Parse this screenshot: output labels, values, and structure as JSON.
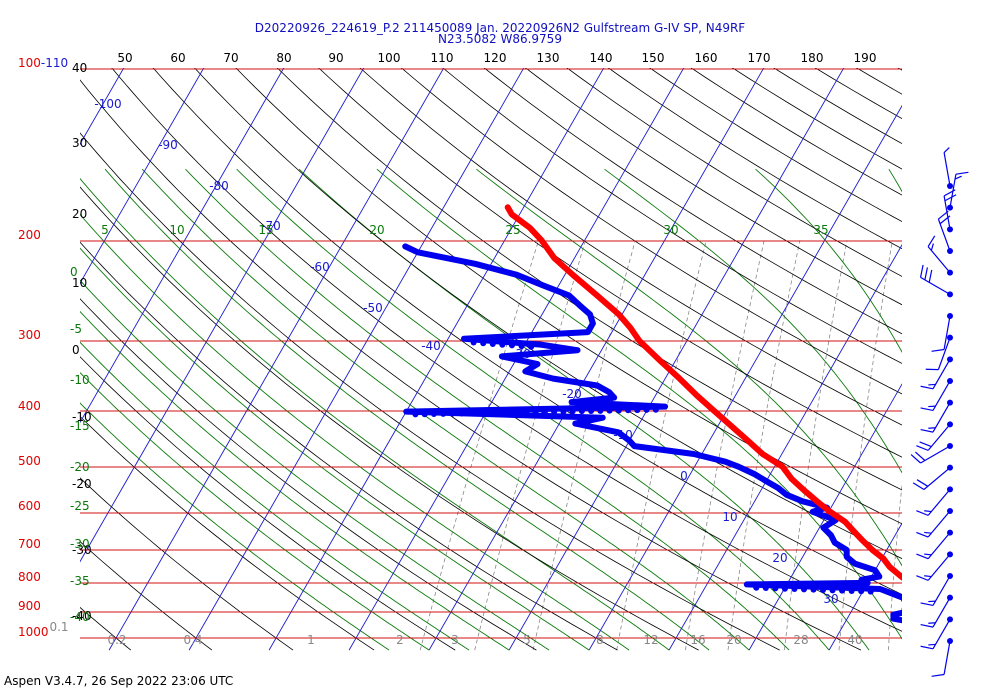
{
  "header": {
    "title_line1": "D20220926_224619_P.2 211450089 Jan. 20220926N2 Gulfstream G-IV SP, N49RF",
    "title_line2": "N23.5082 W86.9759"
  },
  "footer": {
    "text": "Aspen V3.4.7, 26 Sep 2022  23:06 UTC"
  },
  "colors": {
    "isobar": "#d01010",
    "isotherm": "#1a1ad0",
    "dry_adiabat": "#000000",
    "moist_adiabat": "#0b7a0b",
    "mixing_ratio": "#888888",
    "temperature": "#ff0000",
    "dewpoint": "#0000ee",
    "pressure_label": "#e00000",
    "theta_label": "#000000",
    "isotherm_label": "#1a1ad0",
    "moist_label": "#0b7a0b",
    "mixing_label": "#888888"
  },
  "chart_data": {
    "type": "skew-t",
    "pressure_labels": [
      "100-110",
      "200",
      "300",
      "400",
      "500",
      "600",
      "700",
      "800",
      "900",
      "1000"
    ],
    "pressure_levels": [
      100,
      200,
      300,
      400,
      500,
      600,
      700,
      800,
      900,
      1000
    ],
    "theta_ticks_top": [
      "50",
      "60",
      "70",
      "80",
      "90",
      "100",
      "110",
      "120",
      "130",
      "140",
      "150",
      "160",
      "170",
      "180",
      "190"
    ],
    "theta_ticks_left": [
      "40",
      "30",
      "20",
      "10",
      "0",
      "-10",
      "-20",
      "-30",
      "-40"
    ],
    "isotherm_labels": [
      "-100",
      "-90",
      "-80",
      "-70",
      "-60",
      "-50",
      "-40",
      "-30",
      "-20",
      "-10",
      "0",
      "10",
      "20",
      "30"
    ],
    "moist_labels_top": [
      "5",
      "10",
      "15",
      "20",
      "25",
      "30",
      "35"
    ],
    "moist_labels_left": [
      "0",
      "-5",
      "-10",
      "-15",
      "-20",
      "-25",
      "-30",
      "-35",
      "-40"
    ],
    "mixing_labels": [
      "0.1",
      "0.2",
      "0.4",
      "1",
      "2",
      "3",
      "5",
      "8",
      "12",
      "16",
      "20",
      "28",
      "40"
    ],
    "temperature": {
      "p": [
        1000,
        990,
        975,
        950,
        925,
        900,
        875,
        850,
        825,
        800,
        775,
        750,
        725,
        700,
        675,
        650,
        625,
        600,
        575,
        550,
        525,
        500,
        475,
        450,
        425,
        400,
        375,
        350,
        325,
        300,
        285,
        270,
        250,
        230,
        215,
        200,
        190,
        180,
        175
      ],
      "t": [
        28.5,
        27.5,
        26.4,
        24.6,
        22.8,
        21.0,
        19.6,
        18.0,
        16.8,
        15.2,
        13.4,
        11.6,
        10.2,
        8.2,
        6.4,
        4.6,
        2.8,
        0.2,
        -2.2,
        -4.6,
        -7.0,
        -9.0,
        -12.4,
        -15.2,
        -18.2,
        -21.4,
        -24.8,
        -28.2,
        -32.0,
        -36.0,
        -38.0,
        -40.4,
        -44.5,
        -49.0,
        -52.5,
        -55.4,
        -57.8,
        -61.0,
        -62.0
      ]
    },
    "dewpoint": {
      "p": [
        1000,
        990,
        975,
        950,
        925,
        910,
        900,
        890,
        875,
        850,
        820,
        805,
        800,
        790,
        780,
        760,
        740,
        720,
        700,
        680,
        660,
        640,
        620,
        600,
        590,
        575,
        560,
        545,
        530,
        515,
        500,
        490,
        475,
        460,
        450,
        435,
        420,
        410,
        400,
        392,
        385,
        378,
        370,
        360,
        350,
        340,
        330,
        320,
        312,
        305,
        298,
        290,
        280,
        270,
        260,
        250,
        240,
        230,
        220,
        210,
        205
      ],
      "td": [
        23.5,
        22.8,
        21.6,
        20.8,
        15.8,
        15.5,
        16.8,
        16.5,
        16.5,
        15.5,
        12.0,
        -5.0,
        10.0,
        9.0,
        11.0,
        10.0,
        7.0,
        5.5,
        5.0,
        3.0,
        2.0,
        0.5,
        1.5,
        -2.0,
        -0.5,
        -4.0,
        -6.5,
        -8.0,
        -10.0,
        -12.0,
        -14.5,
        -16.5,
        -21.0,
        -29.0,
        -30.0,
        -32.0,
        -38.0,
        -35.0,
        -60.0,
        -28.0,
        -40.0,
        -35.0,
        -36.0,
        -38.0,
        -44.0,
        -48.0,
        -47.0,
        -52.0,
        -43.0,
        -48.0,
        -58.0,
        -43.0,
        -43.0,
        -44.0,
        -46.0,
        -48.0,
        -52.0,
        -56.0,
        -62.0,
        -70.0,
        -72.0
      ]
    },
    "wind_barbs": {
      "p": [
        1000,
        960,
        920,
        880,
        840,
        800,
        760,
        720,
        680,
        640,
        600,
        560,
        520,
        480,
        440,
        400,
        360,
        320,
        280,
        240,
        210,
        185
      ],
      "speed_kt": [
        10,
        15,
        15,
        15,
        15,
        15,
        15,
        15,
        20,
        20,
        20,
        15,
        15,
        15,
        10,
        10,
        30,
        15,
        20,
        20,
        15,
        5
      ],
      "direction_deg": [
        190,
        210,
        210,
        210,
        220,
        220,
        220,
        220,
        230,
        240,
        220,
        210,
        210,
        210,
        200,
        190,
        300,
        320,
        340,
        350,
        10,
        350
      ]
    }
  }
}
